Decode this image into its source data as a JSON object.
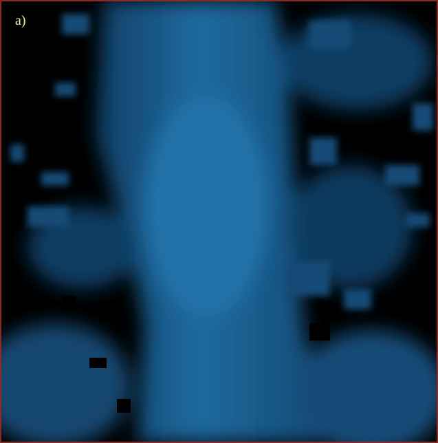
{
  "image": {
    "label": "a)"
  }
}
